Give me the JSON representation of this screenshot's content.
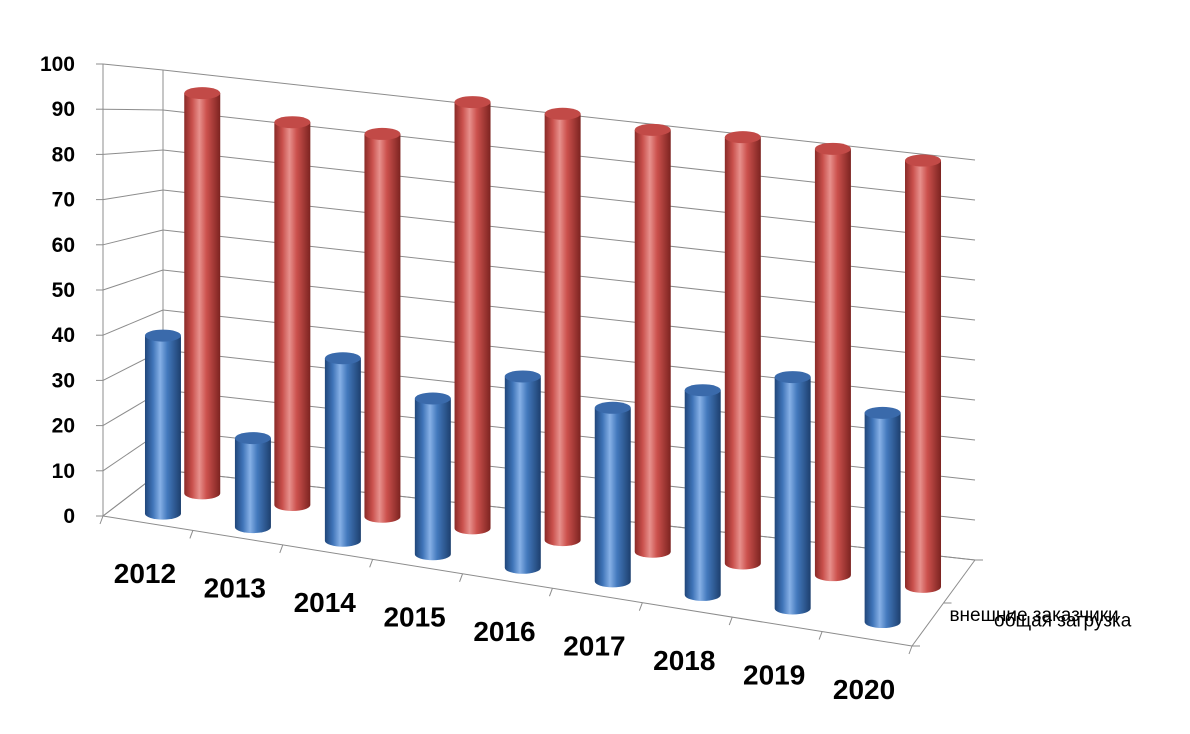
{
  "chart_data": {
    "type": "bar",
    "style": "3d-cylinder",
    "categories": [
      "2012",
      "2013",
      "2014",
      "2015",
      "2016",
      "2017",
      "2018",
      "2019",
      "2020"
    ],
    "series": [
      {
        "name": "внешние заказчики",
        "color": "#4F81BD",
        "values": [
          40,
          20,
          41,
          35,
          43,
          39,
          46,
          52,
          47
        ]
      },
      {
        "name": "общая загрузка",
        "color": "#C0504D",
        "values": [
          92,
          88,
          88,
          98,
          98,
          97,
          98,
          98,
          98
        ]
      }
    ],
    "yticks": [
      "0",
      "10",
      "20",
      "30",
      "40",
      "50",
      "60",
      "70",
      "80",
      "90",
      "100"
    ],
    "ylim": [
      0,
      100
    ],
    "grid": true,
    "title": "",
    "xlabel": "",
    "ylabel": ""
  }
}
